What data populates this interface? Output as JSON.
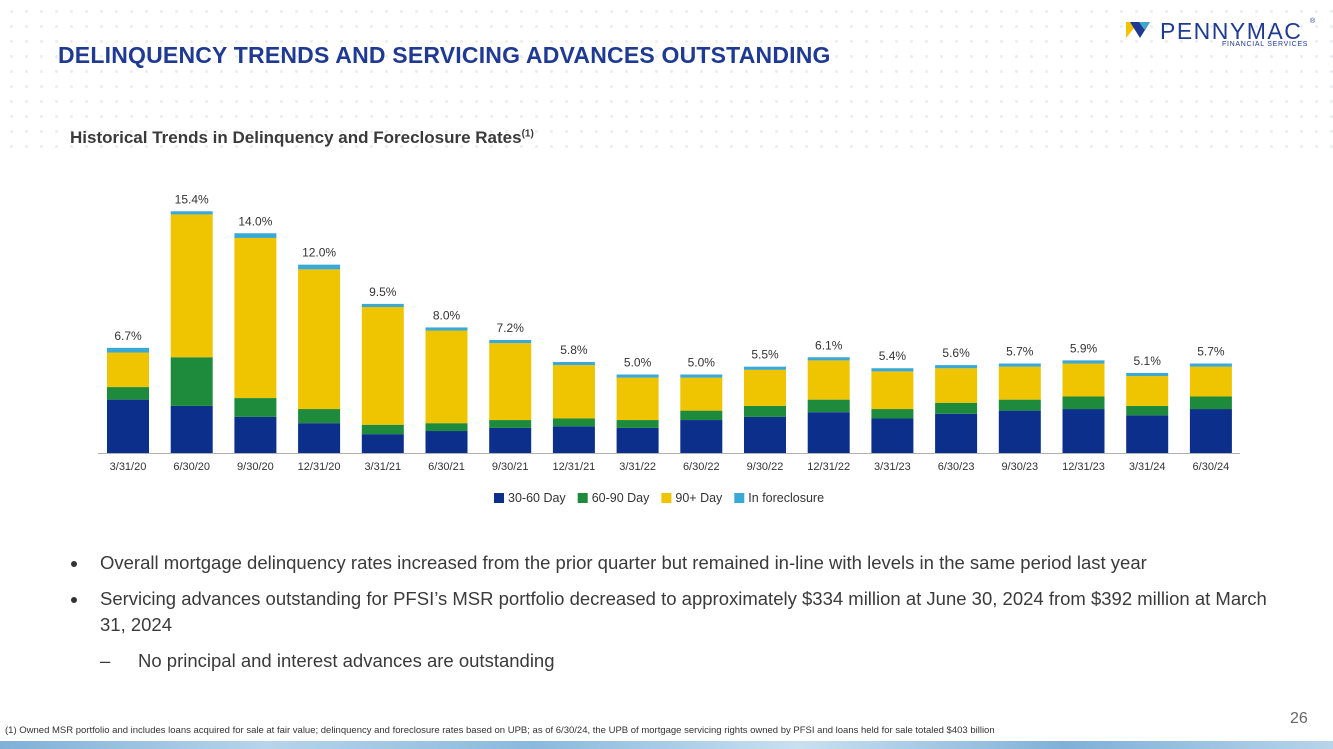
{
  "header": {
    "title": "DELINQUENCY TRENDS AND SERVICING ADVANCES OUTSTANDING",
    "logo_name": "PENNYMAC",
    "logo_sub": "FINANCIAL SERVICES",
    "logo_reg": "®"
  },
  "subtitle": {
    "text": "Historical Trends in Delinquency and Foreclosure Rates",
    "footnote_ref": "(1)"
  },
  "colors": {
    "title_blue": "#1f3a93",
    "navy": "#0b2f8a",
    "green": "#1e8a3c",
    "yellow": "#efc400",
    "light_blue": "#3aa9d6"
  },
  "chart_data": {
    "type": "bar",
    "stacked": true,
    "categories": [
      "3/31/20",
      "6/30/20",
      "9/30/20",
      "12/31/20",
      "3/31/21",
      "6/30/21",
      "9/30/21",
      "12/31/21",
      "3/31/22",
      "6/30/22",
      "9/30/22",
      "12/31/22",
      "3/31/23",
      "6/30/23",
      "9/30/23",
      "12/31/23",
      "3/31/24",
      "6/30/24"
    ],
    "series": [
      {
        "name": "30-60 Day",
        "color": "#0b2f8a",
        "values": [
          3.4,
          3.0,
          2.3,
          1.9,
          1.2,
          1.4,
          1.6,
          1.7,
          1.6,
          2.1,
          2.3,
          2.6,
          2.2,
          2.5,
          2.7,
          2.8,
          2.4,
          2.8
        ]
      },
      {
        "name": "60-90 Day",
        "color": "#1e8a3c",
        "values": [
          0.8,
          3.1,
          1.2,
          0.9,
          0.6,
          0.5,
          0.5,
          0.5,
          0.5,
          0.6,
          0.7,
          0.8,
          0.6,
          0.7,
          0.7,
          0.8,
          0.6,
          0.8
        ]
      },
      {
        "name": "90+ Day",
        "color": "#efc400",
        "values": [
          2.2,
          9.1,
          10.2,
          8.9,
          7.5,
          5.9,
          4.9,
          3.4,
          2.7,
          2.1,
          2.3,
          2.5,
          2.4,
          2.2,
          2.1,
          2.1,
          1.9,
          1.9
        ]
      },
      {
        "name": "In foreclosure",
        "color": "#3aa9d6",
        "values": [
          0.3,
          0.2,
          0.3,
          0.3,
          0.2,
          0.2,
          0.2,
          0.2,
          0.2,
          0.2,
          0.2,
          0.2,
          0.2,
          0.2,
          0.2,
          0.2,
          0.2,
          0.2
        ]
      }
    ],
    "totals": [
      "6.7%",
      "15.4%",
      "14.0%",
      "12.0%",
      "9.5%",
      "8.0%",
      "7.2%",
      "5.8%",
      "5.0%",
      "5.0%",
      "5.5%",
      "6.1%",
      "5.4%",
      "5.6%",
      "5.7%",
      "5.9%",
      "5.1%",
      "5.7%"
    ],
    "ylim": [
      0,
      15.8
    ],
    "legend_position": "bottom-center",
    "grid": false
  },
  "bullets": [
    {
      "text": "Overall mortgage delinquency rates increased from the prior quarter but remained in-line with levels in the same period last year"
    },
    {
      "text": "Servicing advances outstanding for PFSI’s MSR portfolio decreased to approximately $334 million at June 30, 2024 from $392 million at March 31, 2024"
    }
  ],
  "sub_bullets": [
    {
      "dash": "–",
      "text": "No principal and interest advances are outstanding"
    }
  ],
  "footer": {
    "footnote": "(1) Owned MSR portfolio and includes loans acquired for sale at fair value; delinquency and foreclosure rates based on UPB; as of 6/30/24, the UPB of mortgage servicing rights owned by PFSI and loans held for sale totaled $403 billion",
    "page_number": "26"
  }
}
